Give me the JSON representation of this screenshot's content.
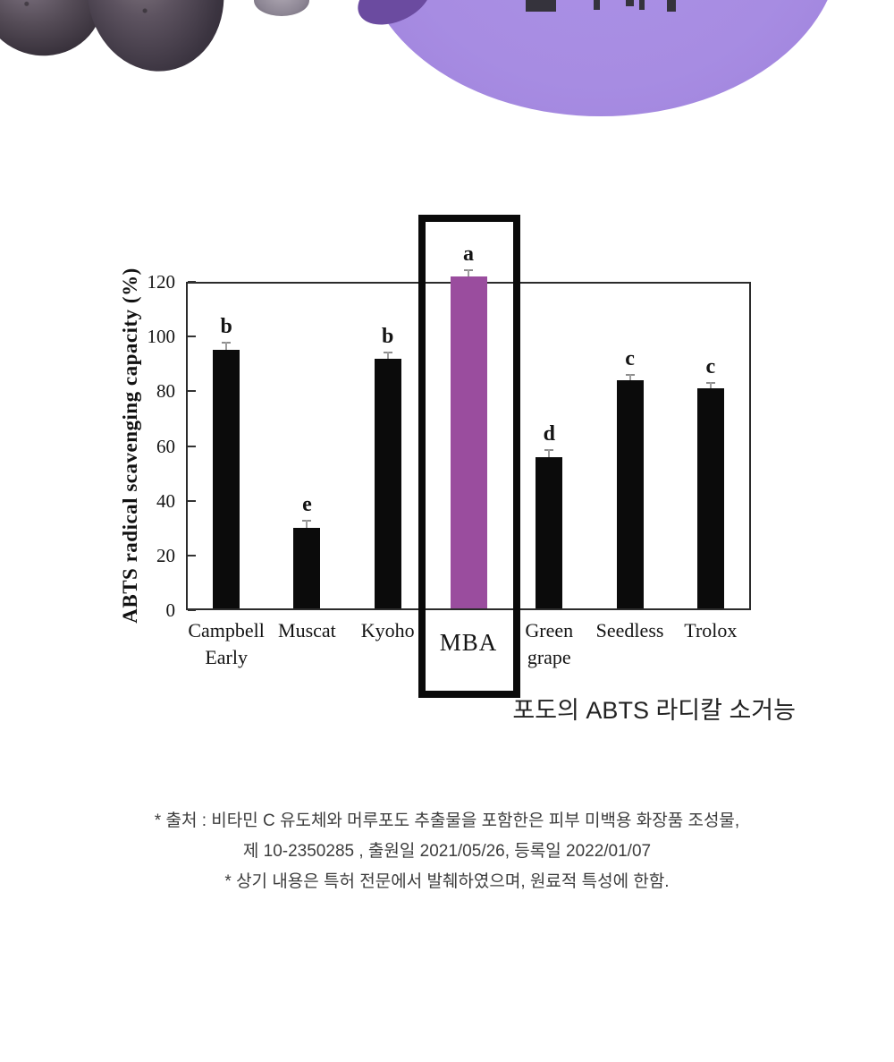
{
  "colors": {
    "accent_purple_bar": "#9a4d9e",
    "hero_ellipse_purple": "#a78ce2",
    "hero_blob_purple": "#6b4ba0",
    "bar_black": "#0b0b0b",
    "text_dark": "#141414",
    "note_gray": "#3d3d3d"
  },
  "chart_data": {
    "type": "bar",
    "title": "",
    "xlabel": "",
    "ylabel": "ABTS radical scavenging capacity (%)",
    "ylim": [
      0,
      120
    ],
    "yticks": [
      0,
      20,
      40,
      60,
      80,
      100,
      120
    ],
    "grid": false,
    "legend": null,
    "categories": [
      "Campbell\nEarly",
      "Muscat",
      "Kyoho",
      "MBA",
      "Green\ngrape",
      "Seedless",
      "Trolox"
    ],
    "values": [
      95,
      30,
      92,
      122,
      56,
      84,
      81
    ],
    "errors": [
      2,
      2,
      1.5,
      1.5,
      2,
      1.5,
      1.5
    ],
    "sig_letters": [
      "b",
      "e",
      "b",
      "a",
      "d",
      "c",
      "c"
    ],
    "highlight_index": 3,
    "highlight_label": "MBA",
    "bar_color": "#0b0b0b",
    "highlight_color": "#9a4d9e"
  },
  "caption": "포도의 ABTS 라디칼 소거능",
  "source_note": {
    "lines": [
      "* 출처 : 비타민 C 유도체와 머루포도 추출물을 포함한은 피부 미백용 화장품 조성물,",
      "제 10-2350285 , 출원일 2021/05/26, 등록일 2022/01/07",
      "* 상기 내용은 특허 전문에서 발췌하였으며, 원료적 특성에 한함."
    ]
  }
}
